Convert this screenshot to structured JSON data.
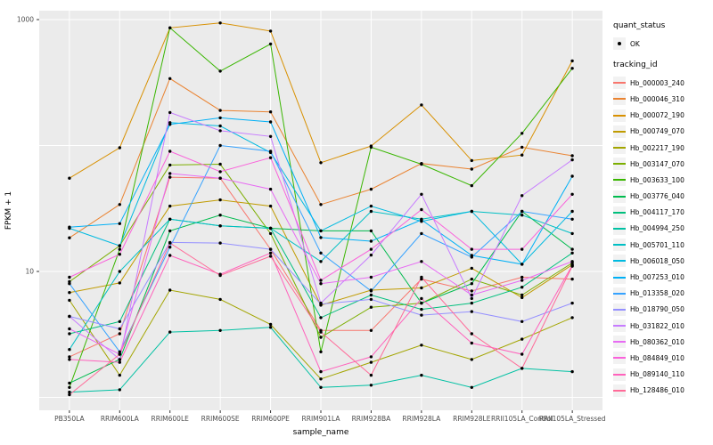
{
  "chart_data": {
    "type": "line",
    "title": "",
    "xlabel": "sample_name",
    "ylabel": "FPKM + 1",
    "y_scale": "log10",
    "ylim": [
      1,
      1000
    ],
    "ytick_labels": [
      "10",
      "1000"
    ],
    "ytick_values": [
      10,
      1000
    ],
    "gridline_values": [
      1,
      10,
      100,
      1000
    ],
    "grid": "on",
    "panel_bg": "#EBEBEB",
    "gridline_color": "#FFFFFF",
    "point_color": "#000000",
    "legend_position": "right",
    "categories": [
      "PB350LA",
      "RRIM600LA",
      "RRIM600LE",
      "RRIM600SE",
      "RRIM600PE",
      "RRIM901LA",
      "RRIM928BA",
      "RRIM928LA",
      "RRIM928LE",
      "RRII105LA_Control",
      "RRII105LA_Stressed"
    ],
    "series": [
      {
        "name": "Hb_000003_240",
        "color": "#F8766D",
        "values": [
          2.1,
          3.2,
          56,
          55,
          15,
          3.4,
          3.4,
          8.7,
          7,
          9,
          8.7
        ]
      },
      {
        "name": "Hb_000046_310",
        "color": "#EA8331",
        "values": [
          18.5,
          34,
          340,
          190,
          185,
          34,
          45,
          72,
          65,
          97,
          83
        ]
      },
      {
        "name": "Hb_000072_190",
        "color": "#D89000",
        "values": [
          55,
          96,
          860,
          940,
          810,
          73,
          99,
          210,
          76,
          84,
          470
        ]
      },
      {
        "name": "Hb_000749_070",
        "color": "#C09B00",
        "values": [
          6.8,
          8.1,
          33,
          37,
          33,
          5.4,
          7.1,
          7.4,
          10.6,
          6.2,
          11.3
        ]
      },
      {
        "name": "Hb_002217_190",
        "color": "#A3A500",
        "values": [
          5.9,
          1.5,
          7.1,
          6,
          3.8,
          1.4,
          1.9,
          2.6,
          2,
          2.9,
          4.3
        ]
      },
      {
        "name": "Hb_003147_070",
        "color": "#7CAE00",
        "values": [
          8.3,
          16,
          70,
          71,
          20,
          3,
          5.2,
          5.6,
          8.7,
          6.5,
          11.7
        ]
      },
      {
        "name": "Hb_003633_100",
        "color": "#39B600",
        "values": [
          1.2,
          15,
          860,
          390,
          640,
          2.3,
          97,
          71,
          48,
          125,
          410
        ]
      },
      {
        "name": "Hb_003776_040",
        "color": "#00BB4E",
        "values": [
          1.3,
          2,
          21,
          28,
          22,
          21,
          21,
          5.6,
          8,
          30,
          15
        ]
      },
      {
        "name": "Hb_004117_170",
        "color": "#00BF7D",
        "values": [
          3.2,
          4,
          26,
          23,
          22,
          4.3,
          6.5,
          5,
          5.6,
          7.5,
          14
        ]
      },
      {
        "name": "Hb_004994_250",
        "color": "#00C1A3",
        "values": [
          1.1,
          1.15,
          3.3,
          3.4,
          3.6,
          1.2,
          1.25,
          1.5,
          1.2,
          1.7,
          1.6
        ]
      },
      {
        "name": "Hb_005701_110",
        "color": "#00BFC4",
        "values": [
          2.4,
          10,
          26,
          23,
          22,
          12,
          30,
          26,
          30,
          28,
          20
        ]
      },
      {
        "name": "Hb_006018_050",
        "color": "#00BAE0",
        "values": [
          22,
          16,
          152,
          143,
          88,
          21,
          33,
          25,
          30,
          11.4,
          30
        ]
      },
      {
        "name": "Hb_007253_010",
        "color": "#00B0F6",
        "values": [
          22.5,
          24,
          147,
          166,
          154,
          18.6,
          17.4,
          25.7,
          13.4,
          11.4,
          57
        ]
      },
      {
        "name": "Hb_013358_020",
        "color": "#35A2FF",
        "values": [
          8,
          2.3,
          15.6,
          100,
          90,
          14,
          7,
          20,
          13,
          30,
          26
        ]
      },
      {
        "name": "Hb_018790_050",
        "color": "#9590FF",
        "values": [
          4.4,
          3.5,
          17,
          16.8,
          15,
          5.5,
          6,
          4.5,
          4.8,
          4,
          5.6
        ]
      },
      {
        "name": "Hb_031822_010",
        "color": "#C77CFF",
        "values": [
          4.4,
          2,
          183,
          131,
          118,
          5.6,
          13.5,
          41,
          6.1,
          40,
          77
        ]
      },
      {
        "name": "Hb_080362_010",
        "color": "#E76BF3",
        "values": [
          3.5,
          2.2,
          60,
          55,
          45,
          8,
          9,
          12,
          6.5,
          8.5,
          12
        ]
      },
      {
        "name": "Hb_084849_010",
        "color": "#FA62DB",
        "values": [
          9,
          13.7,
          90,
          62,
          80,
          8.5,
          15,
          31,
          15,
          15,
          41
        ]
      },
      {
        "name": "Hb_089140_110",
        "color": "#FF62BC",
        "values": [
          2,
          1.9,
          13.4,
          9.5,
          14,
          1.6,
          2.1,
          6.1,
          2.7,
          2.2,
          11.2
        ]
      },
      {
        "name": "Hb_128486_010",
        "color": "#FF6A98",
        "values": [
          1.05,
          2.2,
          16.8,
          9.3,
          13.2,
          3.3,
          1.5,
          9,
          3.2,
          1.7,
          11
        ]
      }
    ],
    "legend": {
      "quant_status_title": "quant_status",
      "quant_status_entries": [
        "OK"
      ],
      "tracking_id_title": "tracking_id"
    }
  }
}
